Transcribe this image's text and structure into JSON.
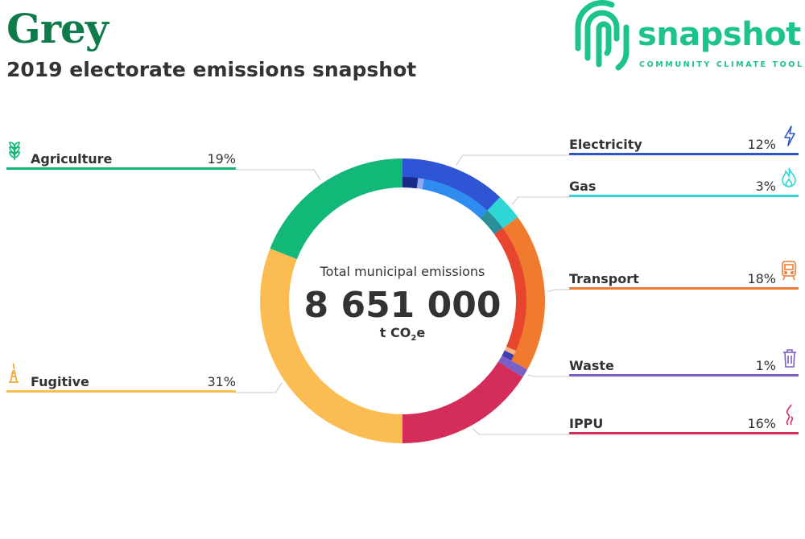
{
  "header": {
    "title": "Grey",
    "subtitle": "2019 electorate emissions snapshot"
  },
  "logo": {
    "name": "snapshot",
    "tagline": "COMMUNITY CLIMATE TOOL",
    "color": "#1cc48c"
  },
  "center": {
    "title": "Total municipal emissions",
    "total": "8 651 000",
    "unit_prefix": "t CO",
    "unit_sub": "2",
    "unit_suffix": "e"
  },
  "chart_data": {
    "type": "pie",
    "donut": true,
    "start": "top, clockwise",
    "sectors": [
      {
        "name": "Electricity",
        "percent_label": "12%",
        "value": 12,
        "color": "#2e55d4",
        "icon": "lightning-icon",
        "subsegments": [
          {
            "color": "#1a2a8a",
            "value": 2
          },
          {
            "color": "#8fa8f0",
            "value": 0.8
          },
          {
            "color": "#2f8df0",
            "value": 9.2
          }
        ]
      },
      {
        "name": "Gas",
        "percent_label": "3%",
        "value": 3,
        "color": "#2fd6d6",
        "icon": "flame-icon",
        "subsegments": [
          {
            "color": "#2a8f9a",
            "value": 3
          }
        ]
      },
      {
        "name": "Transport",
        "percent_label": "18%",
        "value": 18,
        "color": "#f07b2f",
        "icon": "train-icon",
        "subsegments": [
          {
            "color": "#e8452f",
            "value": 16.6
          },
          {
            "color": "#f7b08a",
            "value": 0.6
          },
          {
            "color": "#3f3fb0",
            "value": 0.8
          }
        ]
      },
      {
        "name": "Waste",
        "percent_label": "1%",
        "value": 1,
        "color": "#7a5fc8",
        "icon": "bin-icon",
        "subsegments": []
      },
      {
        "name": "IPPU",
        "percent_label": "16%",
        "value": 16,
        "color": "#d42d5a",
        "icon": "smoke-icon",
        "subsegments": []
      },
      {
        "name": "Fugitive",
        "percent_label": "31%",
        "value": 31,
        "color": "#fbbd52",
        "icon": "oil-rig-icon",
        "subsegments": []
      },
      {
        "name": "Agriculture",
        "percent_label": "19%",
        "value": 19,
        "color": "#12b877",
        "icon": "wheat-icon",
        "subsegments": []
      }
    ]
  }
}
